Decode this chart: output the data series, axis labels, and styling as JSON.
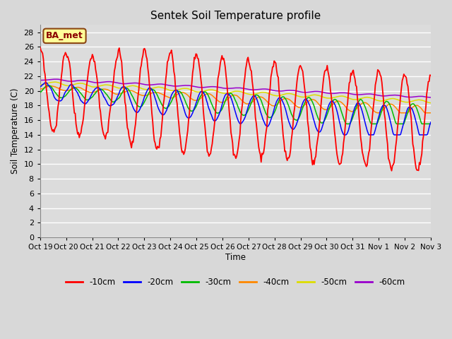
{
  "title": "Sentek Soil Temperature profile",
  "ylabel": "Soil Temperature (C)",
  "xlabel": "Time",
  "annotation": "BA_met",
  "x_tick_labels": [
    "Oct 19",
    "Oct 20",
    "Oct 21",
    "Oct 22",
    "Oct 23",
    "Oct 24",
    "Oct 25",
    "Oct 26",
    "Oct 27",
    "Oct 28",
    "Oct 29",
    "Oct 30",
    "Oct 31",
    "Nov 1",
    "Nov 2",
    "Nov 3"
  ],
  "ylim": [
    0,
    29
  ],
  "yticks": [
    0,
    2,
    4,
    6,
    8,
    10,
    12,
    14,
    16,
    18,
    20,
    22,
    24,
    26,
    28
  ],
  "series_colors": [
    "#ff0000",
    "#0000ff",
    "#00bb00",
    "#ff8800",
    "#dddd00",
    "#9900cc"
  ],
  "series_labels": [
    "-10cm",
    "-20cm",
    "-30cm",
    "-40cm",
    "-50cm",
    "-60cm"
  ],
  "bg_color": "#dcdcdc",
  "title_fontsize": 11,
  "num_points": 480,
  "days": 15
}
